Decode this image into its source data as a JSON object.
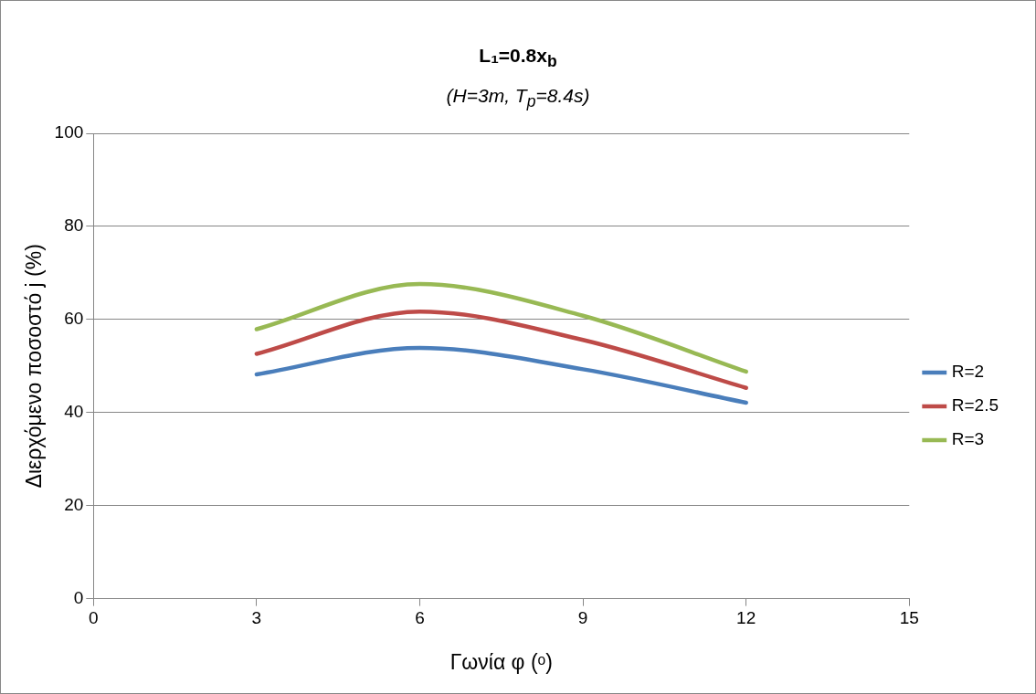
{
  "chart_data": {
    "type": "line",
    "title": "L₁=0.8x$_{b}$",
    "subtitle": "(H=3m, T$_{p}$=8.4s)",
    "xlabel": "Γωνία φ (ᵒ)",
    "ylabel": "Διερχόμενο ποσοστό j (%)",
    "x": [
      3,
      6,
      9,
      12
    ],
    "series": [
      {
        "name": "R=2",
        "color": "#4a7ebb",
        "values": [
          48.2,
          53.9,
          49.3,
          42.1
        ]
      },
      {
        "name": "R=2.5",
        "color": "#be4b48",
        "values": [
          52.6,
          61.7,
          55.6,
          45.3
        ]
      },
      {
        "name": "R=3",
        "color": "#98b954",
        "values": [
          57.9,
          67.6,
          60.8,
          48.8
        ]
      }
    ],
    "xlim": [
      0,
      15
    ],
    "xticks": [
      0,
      3,
      6,
      9,
      12,
      15
    ],
    "ylim": [
      0,
      100
    ],
    "yticks": [
      0,
      20,
      40,
      60,
      80,
      100
    ],
    "grid": "y",
    "legend": "right",
    "marker": "none",
    "line_style": "solid"
  }
}
